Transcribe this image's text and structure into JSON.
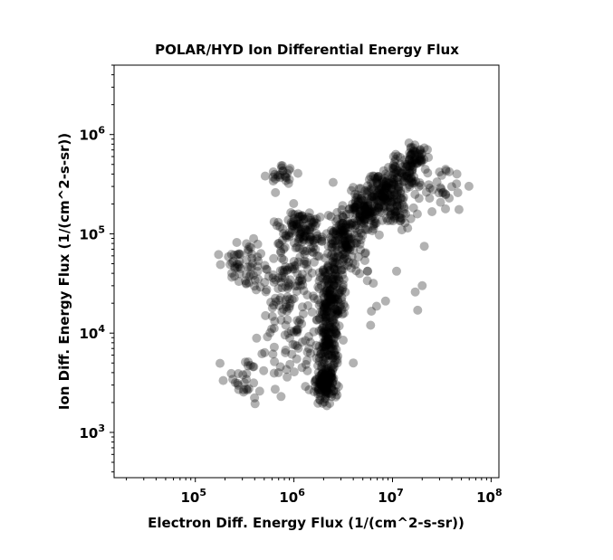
{
  "chart_data": {
    "type": "scatter",
    "title": "POLAR/HYD  Ion Differential Energy Flux",
    "xlabel": "Electron Diff. Energy Flux (1/(cm^2-s-sr))",
    "ylabel": "Ion Diff. Energy Flux (1/(cm^2-s-sr))",
    "xscale": "log",
    "yscale": "log",
    "xlim": [
      15000,
      120000000
    ],
    "ylim": [
      350,
      5000000
    ],
    "x_ticks": [
      {
        "value": 100000,
        "base": "10",
        "exp": "5"
      },
      {
        "value": 1000000,
        "base": "10",
        "exp": "6"
      },
      {
        "value": 10000000,
        "base": "10",
        "exp": "7"
      },
      {
        "value": 100000000,
        "base": "10",
        "exp": "8"
      }
    ],
    "y_ticks": [
      {
        "value": 1000,
        "base": "10",
        "exp": "3"
      },
      {
        "value": 10000,
        "base": "10",
        "exp": "4"
      },
      {
        "value": 100000,
        "base": "10",
        "exp": "5"
      },
      {
        "value": 1000000,
        "base": "10",
        "exp": "6"
      }
    ],
    "grid": false,
    "marker_color": "#000000",
    "marker_opacity": 0.3,
    "clusters": [
      {
        "x": 2100000,
        "y": 3000,
        "sx": 0.05,
        "sy": 0.1,
        "n": 140
      },
      {
        "x": 2200000,
        "y": 9000,
        "sx": 0.05,
        "sy": 0.22,
        "n": 170
      },
      {
        "x": 2500000,
        "y": 28000,
        "sx": 0.06,
        "sy": 0.22,
        "n": 150
      },
      {
        "x": 3200000,
        "y": 90000,
        "sx": 0.08,
        "sy": 0.12,
        "n": 110
      },
      {
        "x": 5000000,
        "y": 170000,
        "sx": 0.09,
        "sy": 0.1,
        "n": 140
      },
      {
        "x": 8000000,
        "y": 260000,
        "sx": 0.09,
        "sy": 0.1,
        "n": 120
      },
      {
        "x": 14000000,
        "y": 420000,
        "sx": 0.08,
        "sy": 0.1,
        "n": 90
      },
      {
        "x": 18000000,
        "y": 650000,
        "sx": 0.05,
        "sy": 0.07,
        "n": 40
      },
      {
        "x": 12000000,
        "y": 180000,
        "sx": 0.1,
        "sy": 0.1,
        "n": 50
      },
      {
        "x": 1100000,
        "y": 120000,
        "sx": 0.1,
        "sy": 0.12,
        "n": 80
      },
      {
        "x": 1400000,
        "y": 90000,
        "sx": 0.08,
        "sy": 0.1,
        "n": 40
      },
      {
        "x": 900000,
        "y": 40000,
        "sx": 0.12,
        "sy": 0.2,
        "n": 80
      },
      {
        "x": 800000,
        "y": 12000,
        "sx": 0.12,
        "sy": 0.22,
        "n": 60
      },
      {
        "x": 330000,
        "y": 50000,
        "sx": 0.12,
        "sy": 0.12,
        "n": 60
      },
      {
        "x": 300000,
        "y": 3500,
        "sx": 0.1,
        "sy": 0.12,
        "n": 30
      },
      {
        "x": 750000,
        "y": 400000,
        "sx": 0.08,
        "sy": 0.06,
        "n": 25
      },
      {
        "x": 4000000,
        "y": 50000,
        "sx": 0.15,
        "sy": 0.25,
        "n": 30
      },
      {
        "x": 30000000,
        "y": 250000,
        "sx": 0.12,
        "sy": 0.15,
        "n": 25
      },
      {
        "x": 1500000,
        "y": 5000,
        "sx": 0.12,
        "sy": 0.15,
        "n": 25
      }
    ],
    "outliers": [
      {
        "x": 45000000,
        "y": 400000
      },
      {
        "x": 35000000,
        "y": 430000
      },
      {
        "x": 30000000,
        "y": 420000
      },
      {
        "x": 18000000,
        "y": 17000
      },
      {
        "x": 17000000,
        "y": 26000
      },
      {
        "x": 21000000,
        "y": 75000
      },
      {
        "x": 20000000,
        "y": 30000
      },
      {
        "x": 180000,
        "y": 49000
      },
      {
        "x": 740000,
        "y": 2300
      },
      {
        "x": 650000,
        "y": 260000
      },
      {
        "x": 4000000,
        "y": 5000
      },
      {
        "x": 6000000,
        "y": 12000
      },
      {
        "x": 2500000,
        "y": 330000
      },
      {
        "x": 11000000,
        "y": 42000
      },
      {
        "x": 8500000,
        "y": 21000
      }
    ]
  }
}
